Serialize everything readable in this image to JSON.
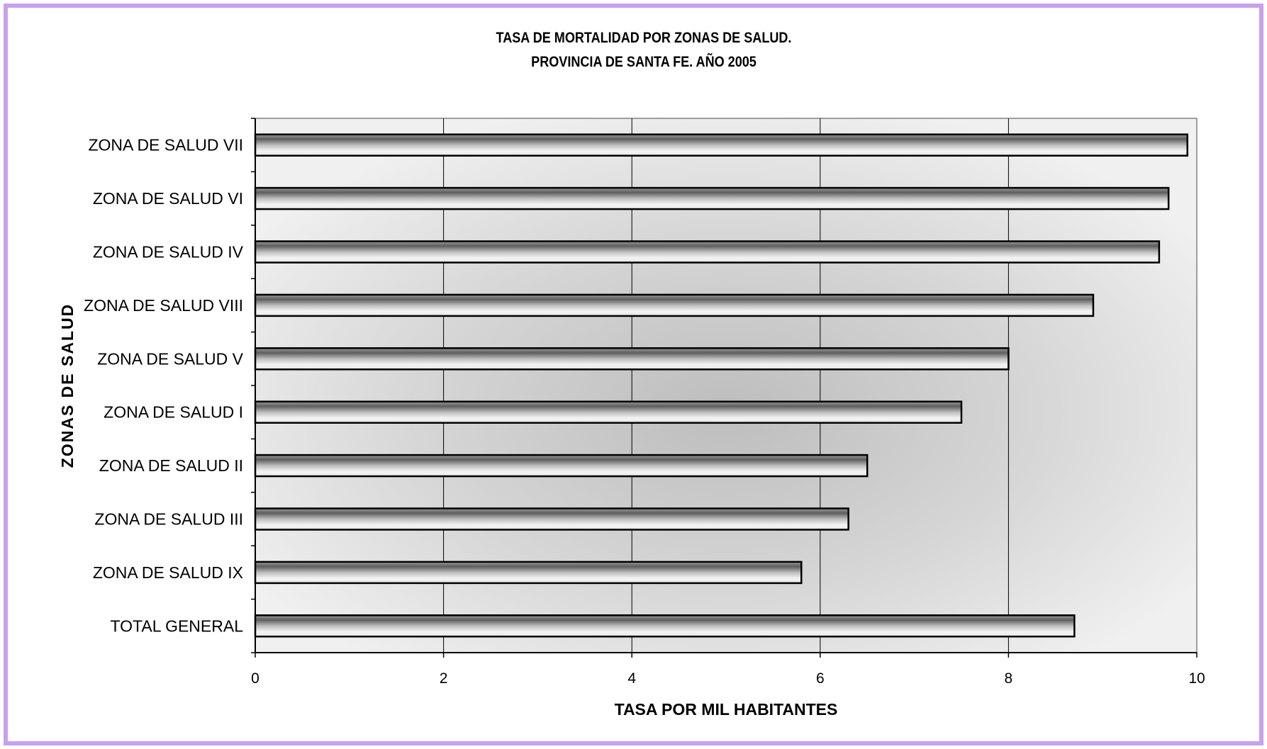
{
  "chart_data": {
    "type": "bar",
    "orientation": "horizontal",
    "title": "TASA DE MORTALIDAD POR ZONAS DE SALUD.",
    "subtitle": "PROVINCIA DE SANTA FE. AÑO 2005",
    "xlabel": "TASA POR MIL HABITANTES",
    "ylabel": "ZONAS DE SALUD",
    "xlim": [
      0,
      10
    ],
    "xticks": [
      "0",
      "2",
      "4",
      "6",
      "8",
      "10"
    ],
    "grid": true,
    "legend": "none",
    "categories": [
      "ZONA DE SALUD VII",
      "ZONA DE SALUD VI",
      "ZONA DE SALUD IV",
      "ZONA DE SALUD VIII",
      "ZONA DE SALUD V",
      "ZONA DE SALUD I",
      "ZONA DE SALUD II",
      "ZONA DE SALUD III",
      "ZONA DE SALUD IX",
      "TOTAL GENERAL"
    ],
    "values": [
      9.9,
      9.7,
      9.6,
      8.9,
      8.0,
      7.5,
      6.5,
      6.3,
      5.8,
      8.7
    ]
  },
  "colors": {
    "frame_border": "#c9a0ee",
    "bar_outline": "#000000",
    "plot_light": "#f2f2f2",
    "plot_dark": "#bfbfbf"
  }
}
